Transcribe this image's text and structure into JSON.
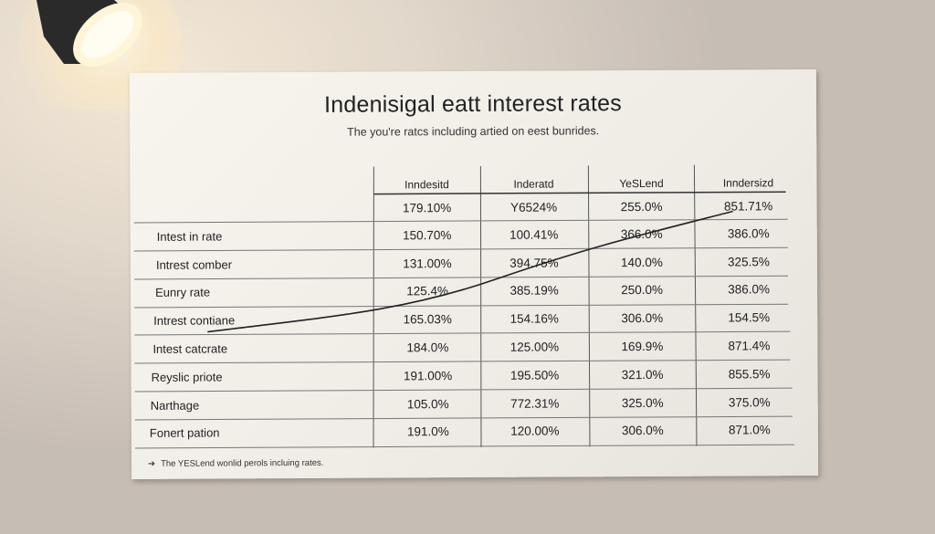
{
  "title": "Indenisigal eatt interest rates",
  "subtitle": "The you're ratcs including artied on eest bunrides.",
  "columns": [
    "Inndesitd",
    "Inderatd",
    "YeSLend",
    "Inndersizd"
  ],
  "rows": [
    {
      "label": "",
      "values": [
        "179.10%",
        "Y6524%",
        "255.0%",
        "851.71%"
      ]
    },
    {
      "label": "Intest in rate",
      "values": [
        "150.70%",
        "100.41%",
        "366.0%",
        "386.0%"
      ]
    },
    {
      "label": "Intrest comber",
      "values": [
        "131.00%",
        "394.75%",
        "140.0%",
        "325.5%"
      ]
    },
    {
      "label": "Eunry rate",
      "values": [
        "125.4%",
        "385.19%",
        "250.0%",
        "386.0%"
      ]
    },
    {
      "label": "Intrest contiane",
      "values": [
        "165.03%",
        "154.16%",
        "306.0%",
        "154.5%"
      ]
    },
    {
      "label": "Intest catcrate",
      "values": [
        "184.0%",
        "125.00%",
        "169.9%",
        "871.4%"
      ]
    },
    {
      "label": "Reyslic priote",
      "values": [
        "191.00%",
        "195.50%",
        "321.0%",
        "855.5%"
      ]
    },
    {
      "label": "Narthage",
      "values": [
        "105.0%",
        "772.31%",
        "325.0%",
        "375.0%"
      ]
    },
    {
      "label": "Fonert pation",
      "values": [
        "191.0%",
        "120.00%",
        "306.0%",
        "871.0%"
      ]
    }
  ],
  "footer": "The YESLend wonlid perols incluing rates.",
  "footer_icon": "arrow-right-icon"
}
